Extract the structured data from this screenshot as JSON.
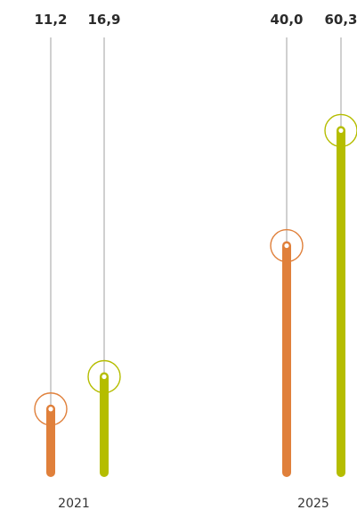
{
  "chart_data": {
    "type": "bar",
    "style": "lollipop",
    "categories": [
      "2021",
      "2025"
    ],
    "series": [
      {
        "color": "#E0803B",
        "values": [
          11.2,
          40.0
        ]
      },
      {
        "color": "#B5BD00",
        "values": [
          16.9,
          60.3
        ]
      }
    ],
    "value_labels": [
      [
        "11,2",
        "40,0"
      ],
      [
        "16,9",
        "60,3"
      ]
    ],
    "ylim": [
      0,
      72
    ],
    "title": "",
    "xlabel": "",
    "ylabel": "",
    "grid": false,
    "legend": "none"
  }
}
